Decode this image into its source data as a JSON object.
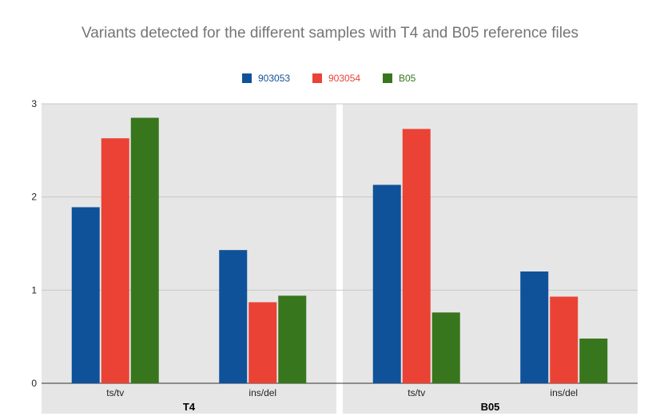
{
  "chart_data": {
    "type": "bar",
    "title": "Variants detected for the different samples with T4 and B05 reference files",
    "xlabel": "",
    "ylabel": "",
    "ylim": [
      0,
      3
    ],
    "yticks": [
      0,
      1,
      2,
      3
    ],
    "grid": true,
    "legend_position": "top-center",
    "groups": [
      {
        "name": "T4",
        "categories": [
          "ts/tv",
          "ins/del"
        ],
        "series": [
          {
            "name": "903053",
            "color": "#0f5299",
            "values": [
              1.89,
              1.43
            ]
          },
          {
            "name": "903054",
            "color": "#ea4335",
            "values": [
              2.63,
              0.87
            ]
          },
          {
            "name": "B05",
            "color": "#38761d",
            "values": [
              2.85,
              0.94
            ]
          }
        ]
      },
      {
        "name": "B05",
        "categories": [
          "ts/tv",
          "ins/del"
        ],
        "series": [
          {
            "name": "903053",
            "color": "#0f5299",
            "values": [
              2.13,
              1.2
            ]
          },
          {
            "name": "903054",
            "color": "#ea4335",
            "values": [
              2.73,
              0.93
            ]
          },
          {
            "name": "B05",
            "color": "#38761d",
            "values": [
              0.76,
              0.48
            ]
          }
        ]
      }
    ],
    "legend": [
      {
        "name": "903053",
        "color": "#0f5299"
      },
      {
        "name": "903054",
        "color": "#ea4335"
      },
      {
        "name": "B05",
        "color": "#38761d"
      }
    ]
  }
}
